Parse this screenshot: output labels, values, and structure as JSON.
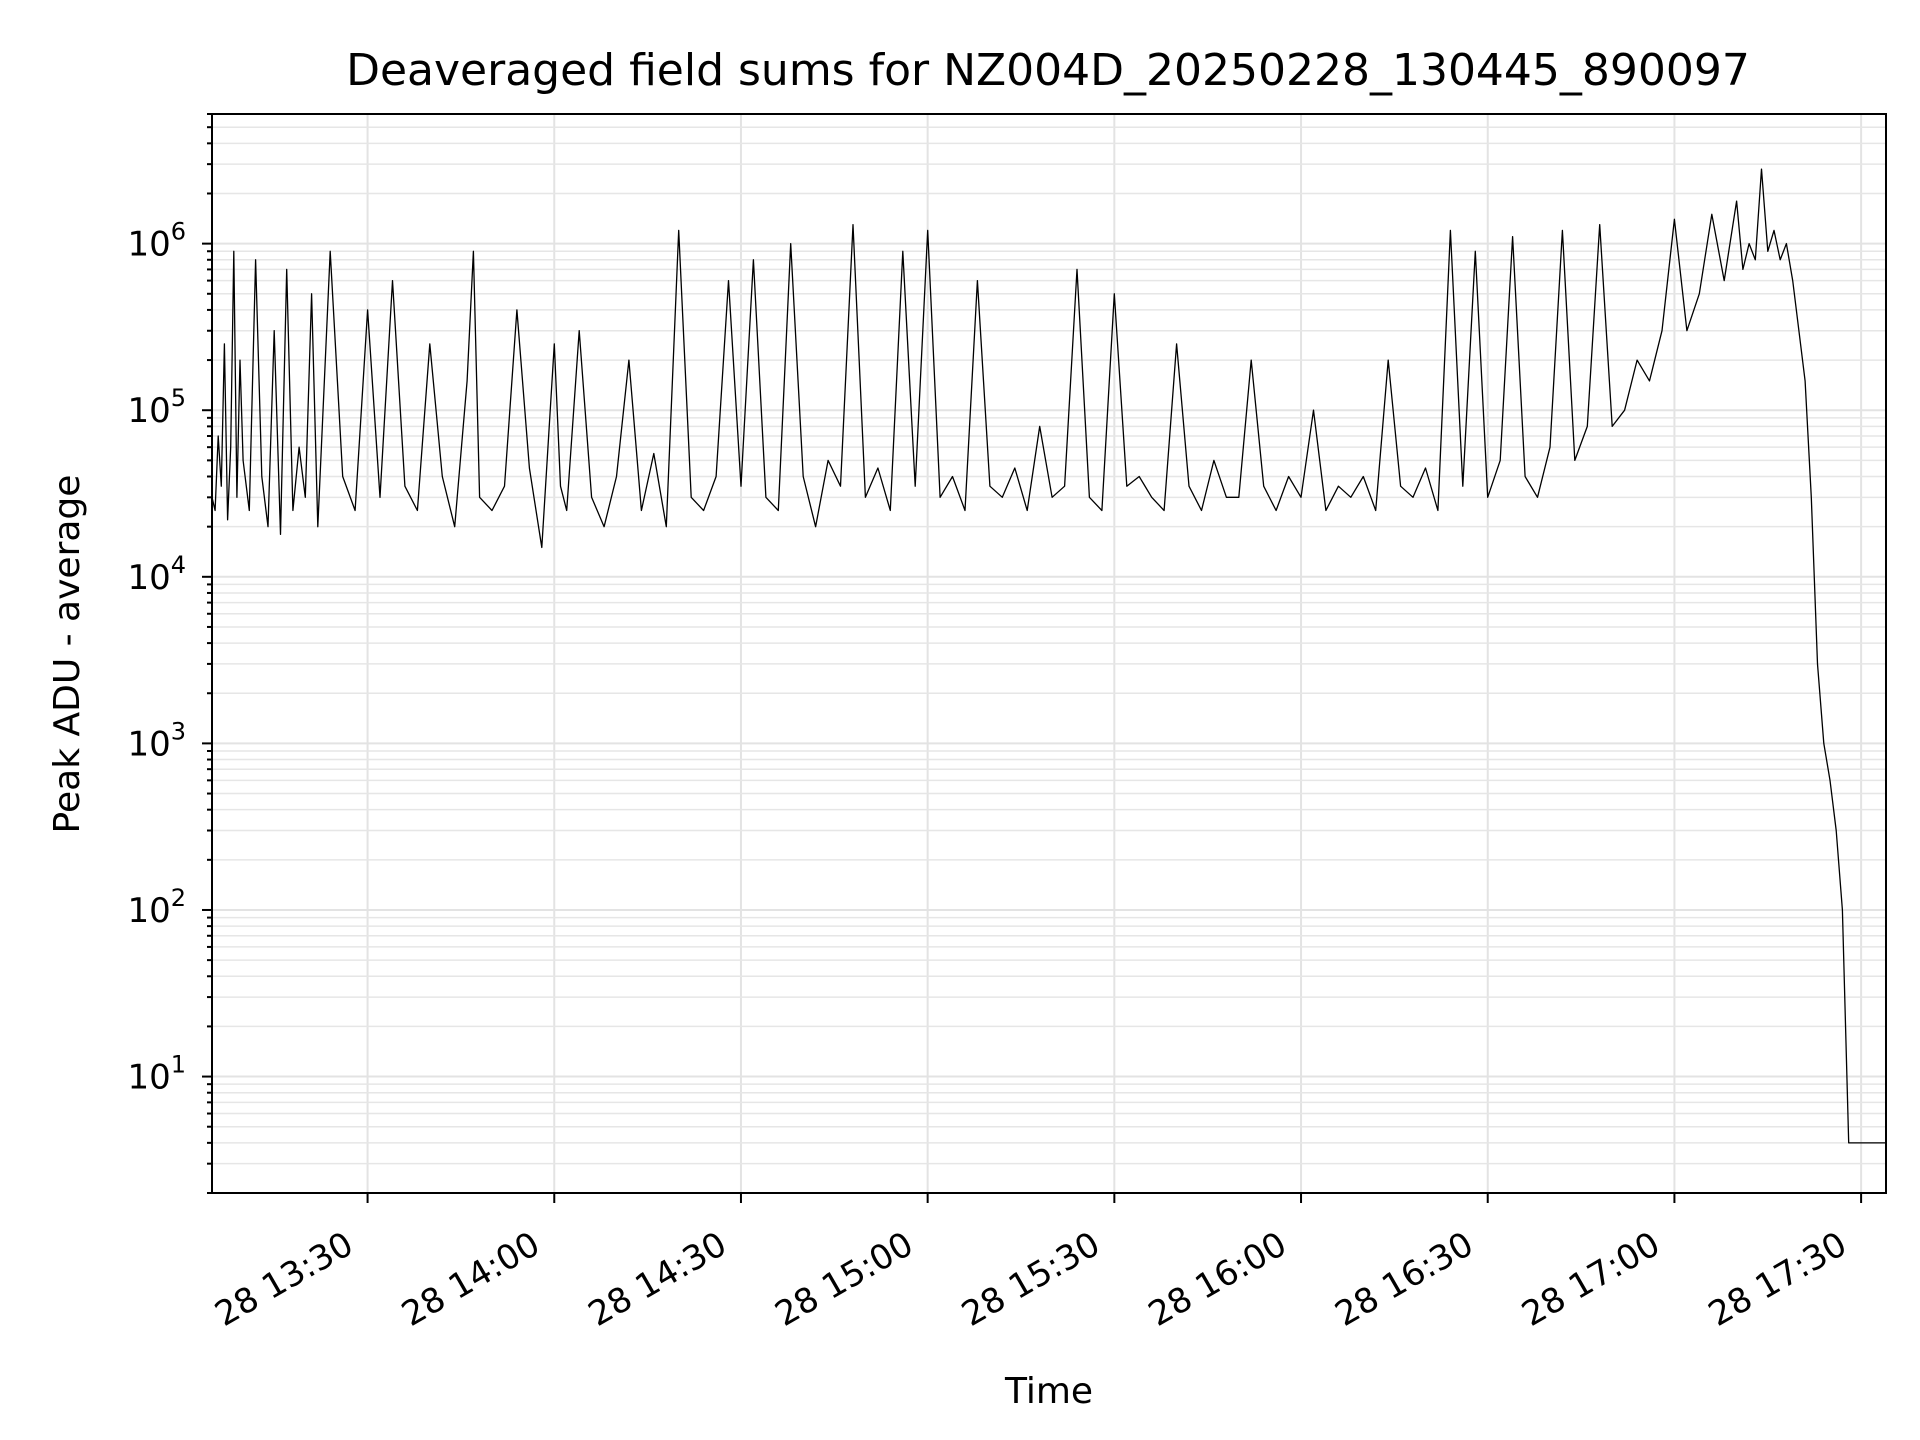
{
  "chart_data": {
    "type": "line",
    "title": "Deaveraged field sums for NZ004D_20250228_130445_890097",
    "xlabel": "Time",
    "ylabel": "Peak ADU - average",
    "x_axis_type": "datetime",
    "xlim": [
      "2025-02-28T13:05:00",
      "2025-02-28T17:34:00"
    ],
    "x_ticks": [
      {
        "value": "2025-02-28T13:30:00",
        "label": "28 13:30"
      },
      {
        "value": "2025-02-28T14:00:00",
        "label": "28 14:00"
      },
      {
        "value": "2025-02-28T14:30:00",
        "label": "28 14:30"
      },
      {
        "value": "2025-02-28T15:00:00",
        "label": "28 15:00"
      },
      {
        "value": "2025-02-28T15:30:00",
        "label": "28 15:30"
      },
      {
        "value": "2025-02-28T16:00:00",
        "label": "28 16:00"
      },
      {
        "value": "2025-02-28T16:30:00",
        "label": "28 16:30"
      },
      {
        "value": "2025-02-28T17:00:00",
        "label": "28 17:00"
      },
      {
        "value": "2025-02-28T17:30:00",
        "label": "28 17:30"
      }
    ],
    "y_scale": "log",
    "ylim": [
      2,
      6000000
    ],
    "y_ticks": [
      {
        "value": 10,
        "base": "10",
        "exp": "1"
      },
      {
        "value": 100,
        "base": "10",
        "exp": "2"
      },
      {
        "value": 1000,
        "base": "10",
        "exp": "3"
      },
      {
        "value": 10000,
        "base": "10",
        "exp": "4"
      },
      {
        "value": 100000,
        "base": "10",
        "exp": "5"
      },
      {
        "value": 1000000,
        "base": "10",
        "exp": "6"
      }
    ],
    "grid": true,
    "line_color": "#000000",
    "grid_color": "#e3e3e3",
    "series": [
      {
        "x": [
          "2025-02-28T13:05:00",
          "2025-02-28T13:05:30",
          "2025-02-28T13:06:00",
          "2025-02-28T13:06:30",
          "2025-02-28T13:07:00",
          "2025-02-28T13:07:30",
          "2025-02-28T13:08:00",
          "2025-02-28T13:08:30",
          "2025-02-28T13:09:00",
          "2025-02-28T13:09:30",
          "2025-02-28T13:10:00",
          "2025-02-28T13:11:00",
          "2025-02-28T13:12:00",
          "2025-02-28T13:13:00",
          "2025-02-28T13:14:00",
          "2025-02-28T13:15:00",
          "2025-02-28T13:16:00",
          "2025-02-28T13:17:00",
          "2025-02-28T13:18:00",
          "2025-02-28T13:19:00",
          "2025-02-28T13:20:00",
          "2025-02-28T13:21:00",
          "2025-02-28T13:22:00",
          "2025-02-28T13:24:00",
          "2025-02-28T13:26:00",
          "2025-02-28T13:28:00",
          "2025-02-28T13:30:00",
          "2025-02-28T13:32:00",
          "2025-02-28T13:34:00",
          "2025-02-28T13:36:00",
          "2025-02-28T13:38:00",
          "2025-02-28T13:40:00",
          "2025-02-28T13:42:00",
          "2025-02-28T13:44:00",
          "2025-02-28T13:46:00",
          "2025-02-28T13:47:00",
          "2025-02-28T13:48:00",
          "2025-02-28T13:50:00",
          "2025-02-28T13:52:00",
          "2025-02-28T13:54:00",
          "2025-02-28T13:56:00",
          "2025-02-28T13:58:00",
          "2025-02-28T14:00:00",
          "2025-02-28T14:01:00",
          "2025-02-28T14:02:00",
          "2025-02-28T14:04:00",
          "2025-02-28T14:06:00",
          "2025-02-28T14:08:00",
          "2025-02-28T14:10:00",
          "2025-02-28T14:12:00",
          "2025-02-28T14:14:00",
          "2025-02-28T14:16:00",
          "2025-02-28T14:18:00",
          "2025-02-28T14:20:00",
          "2025-02-28T14:22:00",
          "2025-02-28T14:24:00",
          "2025-02-28T14:26:00",
          "2025-02-28T14:28:00",
          "2025-02-28T14:30:00",
          "2025-02-28T14:32:00",
          "2025-02-28T14:34:00",
          "2025-02-28T14:36:00",
          "2025-02-28T14:38:00",
          "2025-02-28T14:40:00",
          "2025-02-28T14:42:00",
          "2025-02-28T14:44:00",
          "2025-02-28T14:46:00",
          "2025-02-28T14:48:00",
          "2025-02-28T14:50:00",
          "2025-02-28T14:52:00",
          "2025-02-28T14:54:00",
          "2025-02-28T14:56:00",
          "2025-02-28T14:58:00",
          "2025-02-28T15:00:00",
          "2025-02-28T15:02:00",
          "2025-02-28T15:04:00",
          "2025-02-28T15:06:00",
          "2025-02-28T15:08:00",
          "2025-02-28T15:10:00",
          "2025-02-28T15:12:00",
          "2025-02-28T15:14:00",
          "2025-02-28T15:16:00",
          "2025-02-28T15:18:00",
          "2025-02-28T15:20:00",
          "2025-02-28T15:22:00",
          "2025-02-28T15:24:00",
          "2025-02-28T15:26:00",
          "2025-02-28T15:28:00",
          "2025-02-28T15:30:00",
          "2025-02-28T15:32:00",
          "2025-02-28T15:34:00",
          "2025-02-28T15:36:00",
          "2025-02-28T15:38:00",
          "2025-02-28T15:40:00",
          "2025-02-28T15:42:00",
          "2025-02-28T15:44:00",
          "2025-02-28T15:46:00",
          "2025-02-28T15:48:00",
          "2025-02-28T15:50:00",
          "2025-02-28T15:52:00",
          "2025-02-28T15:54:00",
          "2025-02-28T15:56:00",
          "2025-02-28T15:58:00",
          "2025-02-28T16:00:00",
          "2025-02-28T16:02:00",
          "2025-02-28T16:04:00",
          "2025-02-28T16:06:00",
          "2025-02-28T16:08:00",
          "2025-02-28T16:10:00",
          "2025-02-28T16:12:00",
          "2025-02-28T16:14:00",
          "2025-02-28T16:16:00",
          "2025-02-28T16:18:00",
          "2025-02-28T16:20:00",
          "2025-02-28T16:22:00",
          "2025-02-28T16:24:00",
          "2025-02-28T16:26:00",
          "2025-02-28T16:28:00",
          "2025-02-28T16:30:00",
          "2025-02-28T16:32:00",
          "2025-02-28T16:34:00",
          "2025-02-28T16:36:00",
          "2025-02-28T16:38:00",
          "2025-02-28T16:40:00",
          "2025-02-28T16:42:00",
          "2025-02-28T16:44:00",
          "2025-02-28T16:46:00",
          "2025-02-28T16:48:00",
          "2025-02-28T16:50:00",
          "2025-02-28T16:52:00",
          "2025-02-28T16:54:00",
          "2025-02-28T16:56:00",
          "2025-02-28T16:58:00",
          "2025-02-28T17:00:00",
          "2025-02-28T17:02:00",
          "2025-02-28T17:04:00",
          "2025-02-28T17:06:00",
          "2025-02-28T17:08:00",
          "2025-02-28T17:10:00",
          "2025-02-28T17:11:00",
          "2025-02-28T17:12:00",
          "2025-02-28T17:13:00",
          "2025-02-28T17:14:00",
          "2025-02-28T17:15:00",
          "2025-02-28T17:16:00",
          "2025-02-28T17:17:00",
          "2025-02-28T17:18:00",
          "2025-02-28T17:19:00",
          "2025-02-28T17:20:00",
          "2025-02-28T17:21:00",
          "2025-02-28T17:22:00",
          "2025-02-28T17:23:00",
          "2025-02-28T17:24:00",
          "2025-02-28T17:25:00",
          "2025-02-28T17:26:00",
          "2025-02-28T17:27:00",
          "2025-02-28T17:28:00",
          "2025-02-28T17:28:30",
          "2025-02-28T17:29:00",
          "2025-02-28T17:29:30",
          "2025-02-28T17:30:00",
          "2025-02-28T17:30:30",
          "2025-02-28T17:31:00",
          "2025-02-28T17:32:00",
          "2025-02-28T17:33:00",
          "2025-02-28T17:34:00"
        ],
        "y": [
          30000,
          25000,
          70000,
          35000,
          250000,
          22000,
          60000,
          900000,
          30000,
          200000,
          50000,
          25000,
          800000,
          40000,
          20000,
          300000,
          18000,
          700000,
          25000,
          60000,
          30000,
          500000,
          20000,
          900000,
          40000,
          25000,
          400000,
          30000,
          600000,
          35000,
          25000,
          250000,
          40000,
          20000,
          150000,
          900000,
          30000,
          25000,
          35000,
          400000,
          45000,
          15000,
          250000,
          35000,
          25000,
          300000,
          30000,
          20000,
          40000,
          200000,
          25000,
          55000,
          20000,
          1200000,
          30000,
          25000,
          40000,
          600000,
          35000,
          800000,
          30000,
          25000,
          1000000,
          40000,
          20000,
          50000,
          35000,
          1300000,
          30000,
          45000,
          25000,
          900000,
          35000,
          1200000,
          30000,
          40000,
          25000,
          600000,
          35000,
          30000,
          45000,
          25000,
          80000,
          30000,
          35000,
          700000,
          30000,
          25000,
          500000,
          35000,
          40000,
          30000,
          25000,
          250000,
          35000,
          25000,
          50000,
          30000,
          30000,
          200000,
          35000,
          25000,
          40000,
          30000,
          100000,
          25000,
          35000,
          30000,
          40000,
          25000,
          200000,
          35000,
          30000,
          45000,
          25000,
          1200000,
          35000,
          900000,
          30000,
          50000,
          1100000,
          40000,
          30000,
          60000,
          1200000,
          50000,
          80000,
          1300000,
          80000,
          100000,
          200000,
          150000,
          300000,
          1400000,
          300000,
          500000,
          1500000,
          600000,
          1800000,
          700000,
          1000000,
          800000,
          2800000,
          900000,
          1200000,
          800000,
          1000000,
          600000,
          300000,
          150000,
          30000,
          3000,
          1000,
          600,
          300,
          100,
          4,
          4,
          4,
          4,
          4,
          4,
          4,
          4,
          4,
          4
        ]
      }
    ]
  }
}
